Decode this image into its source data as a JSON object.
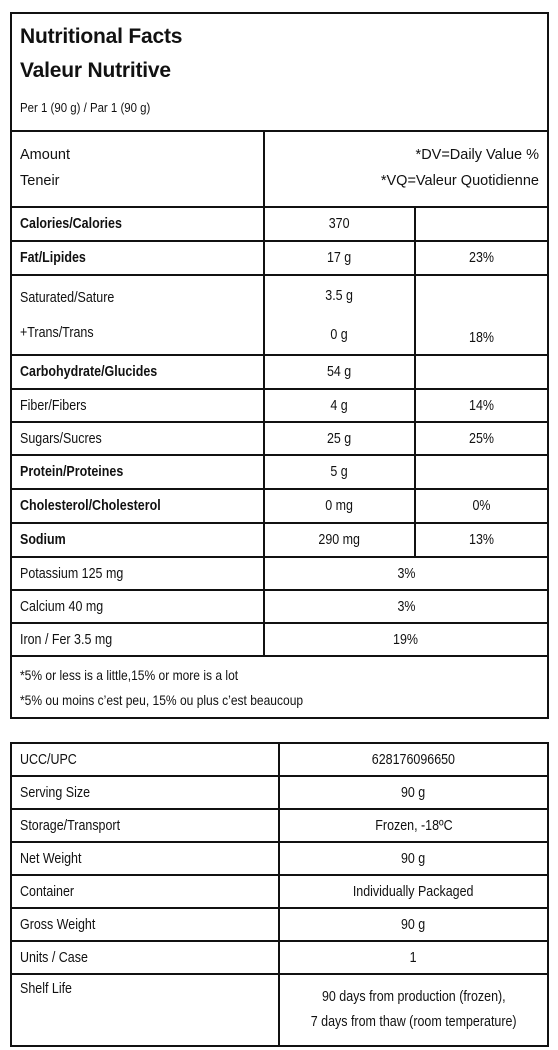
{
  "nutrition": {
    "title_en": "Nutritional Facts",
    "title_fr": "Valeur Nutritive",
    "per": "Per 1 (90 g) / Par 1 (90 g)",
    "amount_en": "Amount",
    "amount_fr": "Teneir",
    "dv_en": "*DV=Daily Value %",
    "dv_fr": "*VQ=Valeur Quotidienne",
    "rows": [
      {
        "label": "Calories/Calories",
        "amount": "370",
        "dv": ""
      },
      {
        "label": "Fat/Lipides",
        "amount": "17 g",
        "dv": "23%"
      },
      {
        "label": "Saturated/Sature",
        "amount": "3.5 g"
      },
      {
        "label": "+Trans/Trans",
        "amount": "0 g",
        "dv": "18%"
      },
      {
        "label": "Carbohydrate/Glucides",
        "amount": "54 g",
        "dv": ""
      },
      {
        "label": "Fiber/Fibers",
        "amount": "4 g",
        "dv": "14%"
      },
      {
        "label": "Sugars/Sucres",
        "amount": "25 g",
        "dv": "25%"
      },
      {
        "label": "Protein/Proteines",
        "amount": "5 g",
        "dv": ""
      },
      {
        "label": "Cholesterol/Cholesterol",
        "amount": "0 mg",
        "dv": "0%"
      },
      {
        "label": "Sodium",
        "amount": "290 mg",
        "dv": "13%"
      },
      {
        "label": "Potassium 125 mg",
        "dv": "3%"
      },
      {
        "label": "Calcium 40 mg",
        "dv": "3%"
      },
      {
        "label": "Iron / Fer 3.5 mg",
        "dv": "19%"
      }
    ],
    "footnote_en": "*5% or less is a little,15% or more is a lot",
    "footnote_fr": "*5% ou moins c’est peu, 15% ou plus c’est beaucoup"
  },
  "specs": [
    {
      "label": "UCC/UPC",
      "value": "628176096650"
    },
    {
      "label": "Serving Size",
      "value": "90 g"
    },
    {
      "label": "Storage/Transport",
      "value": "Frozen, -18ºC"
    },
    {
      "label": "Net Weight",
      "value": "90 g"
    },
    {
      "label": "Container",
      "value": "Individually Packaged"
    },
    {
      "label": "Gross Weight",
      "value": "90 g"
    },
    {
      "label": "Units / Case",
      "value": "1"
    },
    {
      "label": "Shelf Life",
      "value_line1": "90 days from production (frozen),",
      "value_line2": "7 days from thaw (room temperature)"
    }
  ]
}
